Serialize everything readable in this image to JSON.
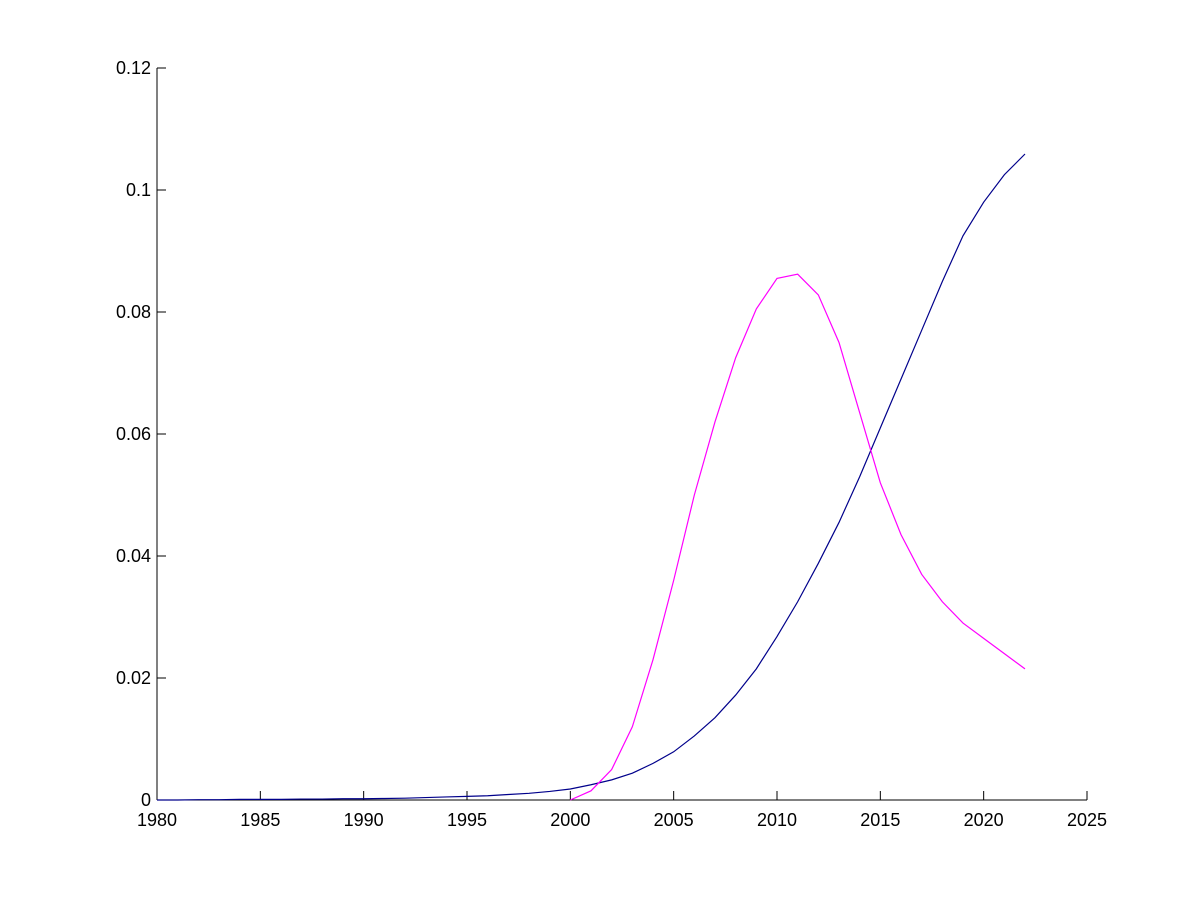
{
  "chart_data": {
    "type": "line",
    "x": [
      1980,
      1981,
      1982,
      1983,
      1984,
      1985,
      1986,
      1987,
      1988,
      1989,
      1990,
      1991,
      1992,
      1993,
      1994,
      1995,
      1996,
      1997,
      1998,
      1999,
      2000,
      2001,
      2002,
      2003,
      2004,
      2005,
      2006,
      2007,
      2008,
      2009,
      2010,
      2011,
      2012,
      2013,
      2014,
      2015,
      2016,
      2017,
      2018,
      2019,
      2020,
      2021,
      2022
    ],
    "series": [
      {
        "color": "#00008b",
        "values": [
          0,
          0,
          5e-05,
          5e-05,
          0.0001,
          0.0001,
          0.0001,
          0.00015,
          0.00015,
          0.0002,
          0.0002,
          0.00025,
          0.0003,
          0.0004,
          0.0005,
          0.0006,
          0.0007,
          0.0009,
          0.0011,
          0.0014,
          0.0018,
          0.0025,
          0.0033,
          0.0044,
          0.006,
          0.0079,
          0.0105,
          0.0135,
          0.0172,
          0.0215,
          0.0268,
          0.0325,
          0.0388,
          0.0455,
          0.053,
          0.061,
          0.069,
          0.077,
          0.085,
          0.0925,
          0.098,
          0.1025,
          0.1059
        ]
      },
      {
        "color": "#ff00ff",
        "values": [
          null,
          null,
          null,
          null,
          null,
          null,
          null,
          null,
          null,
          null,
          null,
          null,
          null,
          null,
          null,
          null,
          null,
          null,
          null,
          null,
          0,
          0.0015,
          0.005,
          0.012,
          0.023,
          0.036,
          0.05,
          0.062,
          0.0725,
          0.0805,
          0.0855,
          0.0862,
          0.0828,
          0.075,
          0.0635,
          0.052,
          0.0435,
          0.037,
          0.0325,
          0.029,
          0.0265,
          0.024,
          0.0215
        ]
      }
    ],
    "xlim": [
      1980,
      2025
    ],
    "xticks": [
      1980,
      1985,
      1990,
      1995,
      2000,
      2005,
      2010,
      2015,
      2020,
      2025
    ],
    "ylim": [
      0,
      0.12
    ],
    "yticks": [
      0,
      0.02,
      0.04,
      0.06,
      0.08,
      0.1,
      0.12
    ]
  }
}
